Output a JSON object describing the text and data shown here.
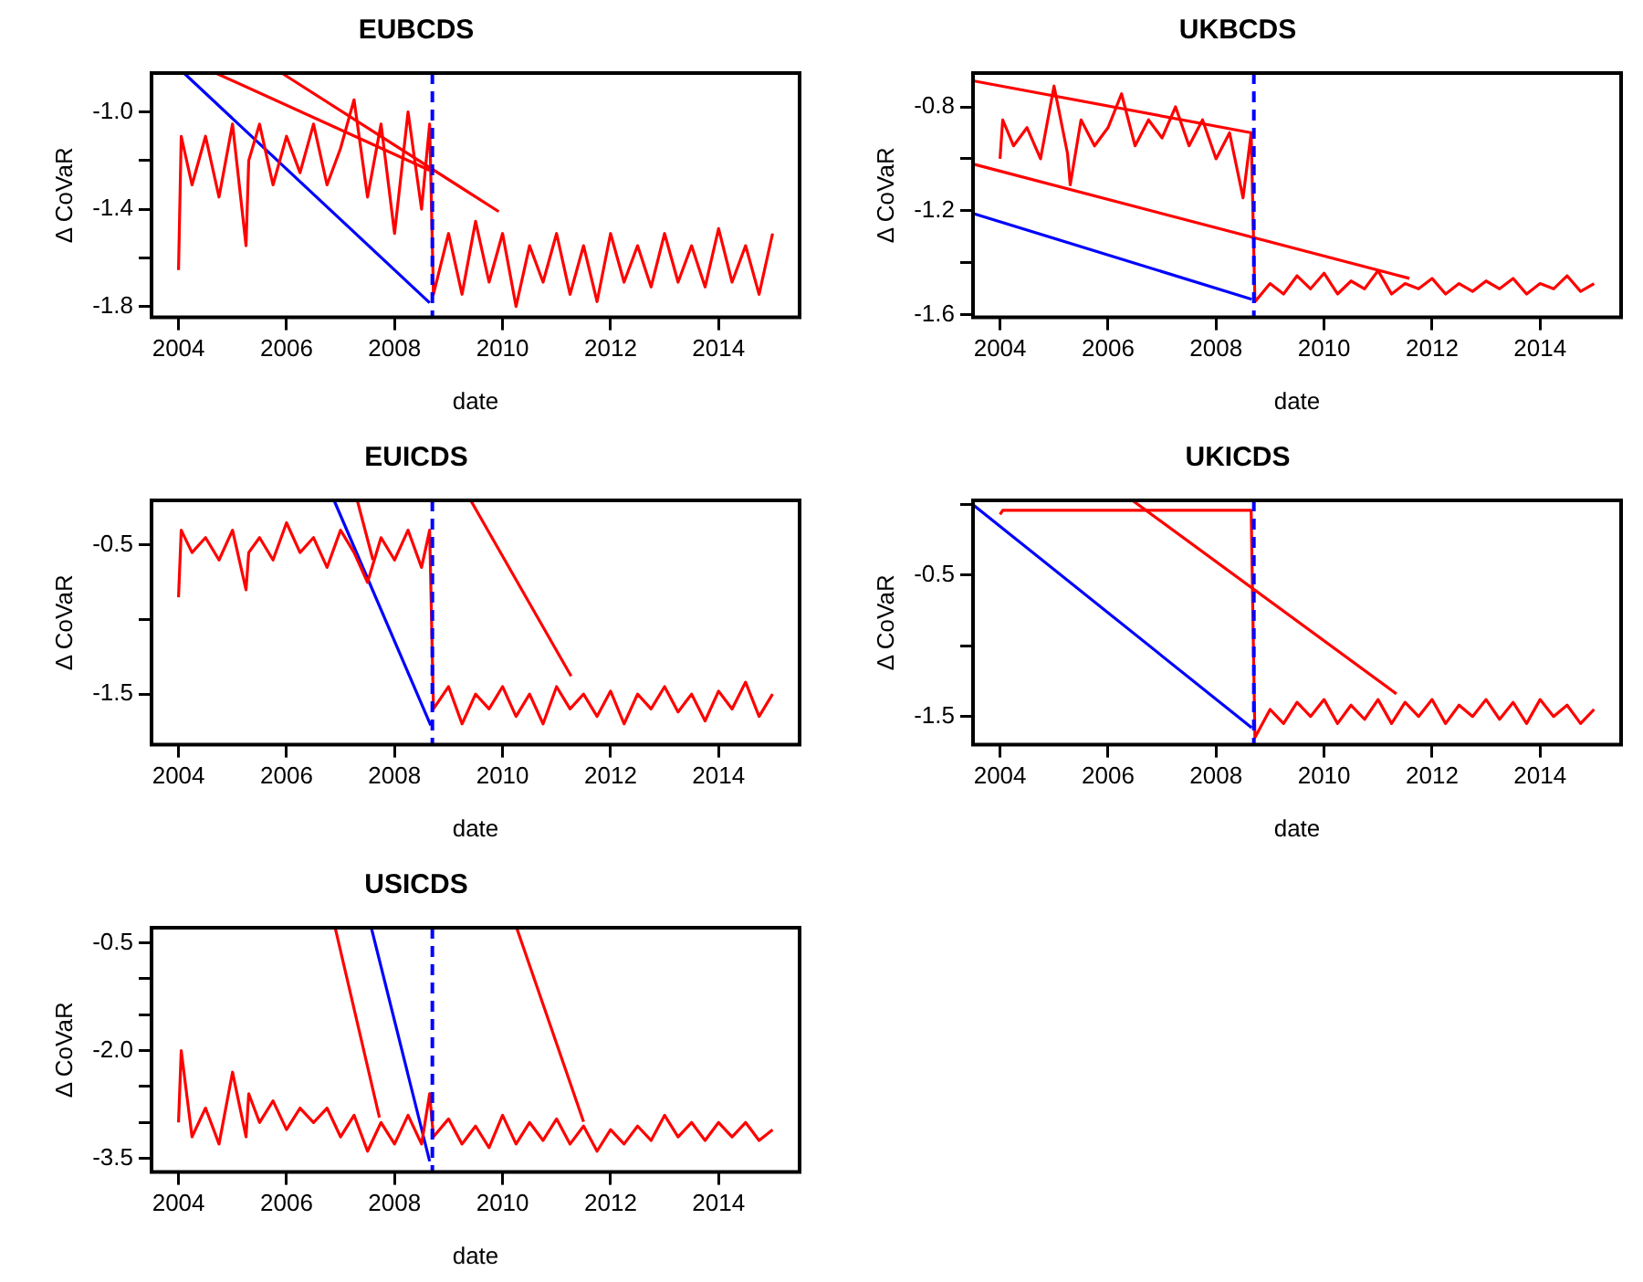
{
  "chart_data": [
    {
      "type": "line",
      "title": "EUBCDS",
      "xlabel": "date",
      "ylabel": "Δ CoVaR",
      "xlim": [
        2003.5,
        2015.5
      ],
      "xticks": [
        2004,
        2006,
        2008,
        2010,
        2012,
        2014
      ],
      "ylim": [
        -1.845,
        -0.84
      ],
      "yticks": [
        {
          "value": -1.8,
          "label": "-1.8"
        },
        {
          "value": -1.6,
          "label": null
        },
        {
          "value": -1.4,
          "label": "-1.4"
        },
        {
          "value": -1.2,
          "label": null
        },
        {
          "value": -1.0,
          "label": "-1.0"
        }
      ],
      "grid": false,
      "legend": false,
      "marker": "none",
      "line_style": "solid",
      "series": [
        {
          "color": "#ff0000",
          "x": [
            2004.0,
            2004.05,
            2004.25,
            2004.5,
            2004.75,
            2005.0,
            2005.25,
            2005.3,
            2005.5,
            2005.75,
            2006.0,
            2006.25,
            2006.5,
            2006.75,
            2007.0,
            2007.25,
            2007.5,
            2007.75,
            2008.0,
            2008.25,
            2008.5,
            2008.65,
            2008.72,
            2009.0,
            2009.25,
            2009.5,
            2009.75,
            2010.0,
            2010.25,
            2010.5,
            2010.75,
            2011.0,
            2011.25,
            2011.5,
            2011.75,
            2012.0,
            2012.25,
            2012.5,
            2012.75,
            2013.0,
            2013.25,
            2013.5,
            2013.75,
            2014.0,
            2014.25,
            2014.5,
            2014.75,
            2015.0
          ],
          "values": [
            -1.65,
            -1.1,
            -1.3,
            -1.1,
            -1.35,
            -1.05,
            -1.55,
            -1.2,
            -1.05,
            -1.3,
            -1.1,
            -1.25,
            -1.05,
            -1.3,
            -1.15,
            -0.95,
            -1.35,
            -1.05,
            -1.5,
            -1.0,
            -1.4,
            -1.05,
            -1.75,
            -1.5,
            -1.75,
            -1.45,
            -1.7,
            -1.5,
            -1.8,
            -1.55,
            -1.7,
            -1.5,
            -1.75,
            -1.55,
            -1.78,
            -1.5,
            -1.7,
            -1.55,
            -1.72,
            -1.5,
            -1.7,
            -1.55,
            -1.72,
            -1.48,
            -1.7,
            -1.55,
            -1.75,
            -1.5
          ]
        },
        {
          "color": "#ff0000",
          "x": [
            2004.69,
            2008.65
          ],
          "values": [
            -0.84,
            -1.24
          ]
        },
        {
          "color": "#ff0000",
          "x": [
            2005.91,
            2009.93
          ],
          "values": [
            -0.84,
            -1.41
          ]
        },
        {
          "color": "#0000ff",
          "x": [
            2004.1,
            2008.65
          ],
          "values": [
            -0.84,
            -1.785
          ]
        }
      ],
      "ref_lines": [
        {
          "axis": "x",
          "value": 2008.7,
          "color": "#0000ff",
          "line_style": "dashed"
        }
      ]
    },
    {
      "type": "line",
      "title": "UKBCDS",
      "xlabel": "date",
      "ylabel": "Δ CoVaR",
      "xlim": [
        2003.5,
        2015.5
      ],
      "xticks": [
        2004,
        2006,
        2008,
        2010,
        2012,
        2014
      ],
      "ylim": [
        -1.61,
        -0.67
      ],
      "yticks": [
        {
          "value": -1.6,
          "label": "-1.6"
        },
        {
          "value": -1.4,
          "label": null
        },
        {
          "value": -1.2,
          "label": "-1.2"
        },
        {
          "value": -1.0,
          "label": null
        },
        {
          "value": -0.8,
          "label": "-0.8"
        }
      ],
      "grid": false,
      "legend": false,
      "marker": "none",
      "line_style": "solid",
      "series": [
        {
          "color": "#ff0000",
          "x": [
            2004.0,
            2004.05,
            2004.25,
            2004.5,
            2004.75,
            2005.0,
            2005.25,
            2005.3,
            2005.5,
            2005.75,
            2006.0,
            2006.25,
            2006.5,
            2006.75,
            2007.0,
            2007.25,
            2007.5,
            2007.75,
            2008.0,
            2008.25,
            2008.5,
            2008.65,
            2008.72,
            2009.0,
            2009.25,
            2009.5,
            2009.75,
            2010.0,
            2010.25,
            2010.5,
            2010.75,
            2011.0,
            2011.25,
            2011.5,
            2011.75,
            2012.0,
            2012.25,
            2012.5,
            2012.75,
            2013.0,
            2013.25,
            2013.5,
            2013.75,
            2014.0,
            2014.25,
            2014.5,
            2014.75,
            2015.0
          ],
          "values": [
            -1.0,
            -0.85,
            -0.95,
            -0.88,
            -1.0,
            -0.72,
            -0.98,
            -1.1,
            -0.85,
            -0.95,
            -0.88,
            -0.75,
            -0.95,
            -0.85,
            -0.92,
            -0.8,
            -0.95,
            -0.85,
            -1.0,
            -0.9,
            -1.15,
            -0.9,
            -1.55,
            -1.48,
            -1.52,
            -1.45,
            -1.5,
            -1.44,
            -1.52,
            -1.47,
            -1.5,
            -1.43,
            -1.52,
            -1.48,
            -1.5,
            -1.46,
            -1.52,
            -1.48,
            -1.51,
            -1.47,
            -1.5,
            -1.46,
            -1.52,
            -1.48,
            -1.5,
            -1.45,
            -1.51,
            -1.48
          ]
        },
        {
          "color": "#ff0000",
          "x": [
            2003.5,
            2008.66
          ],
          "values": [
            -0.7,
            -0.9
          ]
        },
        {
          "color": "#ff0000",
          "x": [
            2003.5,
            2011.58
          ],
          "values": [
            -1.02,
            -1.46
          ]
        },
        {
          "color": "#0000ff",
          "x": [
            2003.5,
            2008.66
          ],
          "values": [
            -1.21,
            -1.54
          ]
        }
      ],
      "ref_lines": [
        {
          "axis": "x",
          "value": 2008.7,
          "color": "#0000ff",
          "line_style": "dashed"
        }
      ]
    },
    {
      "type": "line",
      "title": "EUICDS",
      "xlabel": "date",
      "ylabel": "Δ CoVaR",
      "xlim": [
        2003.5,
        2015.5
      ],
      "xticks": [
        2004,
        2006,
        2008,
        2010,
        2012,
        2014
      ],
      "ylim": [
        -1.84,
        -0.2
      ],
      "yticks": [
        {
          "value": -1.5,
          "label": "-1.5"
        },
        {
          "value": -1.0,
          "label": null
        },
        {
          "value": -0.5,
          "label": "-0.5"
        }
      ],
      "grid": false,
      "legend": false,
      "marker": "none",
      "line_style": "solid",
      "series": [
        {
          "color": "#ff0000",
          "x": [
            2004.0,
            2004.05,
            2004.25,
            2004.5,
            2004.75,
            2005.0,
            2005.25,
            2005.3,
            2005.5,
            2005.75,
            2006.0,
            2006.25,
            2006.5,
            2006.75,
            2007.0,
            2007.25,
            2007.5,
            2007.75,
            2008.0,
            2008.25,
            2008.5,
            2008.65,
            2008.72,
            2009.0,
            2009.25,
            2009.5,
            2009.75,
            2010.0,
            2010.25,
            2010.5,
            2010.75,
            2011.0,
            2011.25,
            2011.5,
            2011.75,
            2012.0,
            2012.25,
            2012.5,
            2012.75,
            2013.0,
            2013.25,
            2013.5,
            2013.75,
            2014.0,
            2014.25,
            2014.5,
            2014.75,
            2015.0
          ],
          "values": [
            -0.85,
            -0.4,
            -0.55,
            -0.45,
            -0.6,
            -0.4,
            -0.8,
            -0.55,
            -0.45,
            -0.6,
            -0.35,
            -0.55,
            -0.45,
            -0.65,
            -0.4,
            -0.55,
            -0.75,
            -0.45,
            -0.6,
            -0.4,
            -0.65,
            -0.4,
            -1.6,
            -1.45,
            -1.7,
            -1.5,
            -1.6,
            -1.45,
            -1.65,
            -1.5,
            -1.7,
            -1.45,
            -1.6,
            -1.5,
            -1.65,
            -1.48,
            -1.7,
            -1.5,
            -1.6,
            -1.45,
            -1.62,
            -1.5,
            -1.68,
            -1.48,
            -1.6,
            -1.42,
            -1.65,
            -1.5
          ]
        },
        {
          "color": "#ff0000",
          "x": [
            2007.31,
            2007.6
          ],
          "values": [
            -0.2,
            -0.6
          ]
        },
        {
          "color": "#ff0000",
          "x": [
            2009.41,
            2011.27
          ],
          "values": [
            -0.2,
            -1.38
          ]
        },
        {
          "color": "#0000ff",
          "x": [
            2006.88,
            2008.67
          ],
          "values": [
            -0.2,
            -1.71
          ]
        }
      ],
      "ref_lines": [
        {
          "axis": "x",
          "value": 2008.7,
          "color": "#0000ff",
          "line_style": "dashed"
        }
      ]
    },
    {
      "type": "line",
      "title": "UKICDS",
      "xlabel": "date",
      "ylabel": "Δ CoVaR",
      "xlim": [
        2003.5,
        2015.5
      ],
      "xticks": [
        2004,
        2006,
        2008,
        2010,
        2012,
        2014
      ],
      "ylim": [
        -1.7,
        0.03
      ],
      "yticks": [
        {
          "value": -1.5,
          "label": "-1.5"
        },
        {
          "value": -1.0,
          "label": null
        },
        {
          "value": -0.5,
          "label": "-0.5"
        },
        {
          "value": 0.0,
          "label": null
        }
      ],
      "grid": false,
      "legend": false,
      "marker": "none",
      "line_style": "solid",
      "series": [
        {
          "color": "#ff0000",
          "x": [
            2004.0,
            2004.05,
            2004.25,
            2004.5,
            2004.75,
            2005.0,
            2005.25,
            2005.3,
            2005.5,
            2005.75,
            2006.0,
            2006.25,
            2006.5,
            2006.75,
            2007.0,
            2007.25,
            2007.5,
            2007.75,
            2008.0,
            2008.25,
            2008.5,
            2008.65,
            2008.72,
            2009.0,
            2009.25,
            2009.5,
            2009.75,
            2010.0,
            2010.25,
            2010.5,
            2010.75,
            2011.0,
            2011.25,
            2011.5,
            2011.75,
            2012.0,
            2012.25,
            2012.5,
            2012.75,
            2013.0,
            2013.25,
            2013.5,
            2013.75,
            2014.0,
            2014.25,
            2014.5,
            2014.75,
            2015.0
          ],
          "values": [
            -0.07,
            -0.04,
            -0.04,
            -0.04,
            -0.04,
            -0.04,
            -0.04,
            -0.04,
            -0.04,
            -0.04,
            -0.04,
            -0.04,
            -0.04,
            -0.04,
            -0.04,
            -0.04,
            -0.04,
            -0.04,
            -0.04,
            -0.04,
            -0.04,
            -0.04,
            -1.65,
            -1.45,
            -1.55,
            -1.4,
            -1.5,
            -1.38,
            -1.55,
            -1.42,
            -1.52,
            -1.38,
            -1.55,
            -1.4,
            -1.5,
            -1.38,
            -1.55,
            -1.42,
            -1.5,
            -1.38,
            -1.52,
            -1.4,
            -1.55,
            -1.38,
            -1.5,
            -1.42,
            -1.55,
            -1.45
          ]
        },
        {
          "color": "#ff0000",
          "x": [
            2006.45,
            2011.34
          ],
          "values": [
            0.03,
            -1.34
          ]
        },
        {
          "color": "#0000ff",
          "x": [
            2003.5,
            2008.66
          ],
          "values": [
            0.0,
            -1.58
          ]
        }
      ],
      "ref_lines": [
        {
          "axis": "x",
          "value": 2008.7,
          "color": "#0000ff",
          "line_style": "dashed"
        }
      ]
    },
    {
      "type": "line",
      "title": "USICDS",
      "xlabel": "date",
      "ylabel": "Δ CoVaR",
      "xlim": [
        2003.5,
        2015.5
      ],
      "xticks": [
        2004,
        2006,
        2008,
        2010,
        2012,
        2014
      ],
      "ylim": [
        -3.69,
        -0.29
      ],
      "yticks": [
        {
          "value": -3.5,
          "label": "-3.5"
        },
        {
          "value": -3.0,
          "label": null
        },
        {
          "value": -2.5,
          "label": null
        },
        {
          "value": -2.0,
          "label": "-2.0"
        },
        {
          "value": -1.5,
          "label": null
        },
        {
          "value": -1.0,
          "label": null
        },
        {
          "value": -0.5,
          "label": "-0.5"
        }
      ],
      "grid": false,
      "legend": false,
      "marker": "none",
      "line_style": "solid",
      "series": [
        {
          "color": "#ff0000",
          "x": [
            2004.0,
            2004.05,
            2004.25,
            2004.5,
            2004.75,
            2005.0,
            2005.25,
            2005.3,
            2005.5,
            2005.75,
            2006.0,
            2006.25,
            2006.5,
            2006.75,
            2007.0,
            2007.25,
            2007.5,
            2007.75,
            2008.0,
            2008.25,
            2008.5,
            2008.65,
            2008.72,
            2009.0,
            2009.25,
            2009.5,
            2009.75,
            2010.0,
            2010.25,
            2010.5,
            2010.75,
            2011.0,
            2011.25,
            2011.5,
            2011.75,
            2012.0,
            2012.25,
            2012.5,
            2012.75,
            2013.0,
            2013.25,
            2013.5,
            2013.75,
            2014.0,
            2014.25,
            2014.5,
            2014.75,
            2015.0
          ],
          "values": [
            -3.0,
            -2.0,
            -3.2,
            -2.8,
            -3.3,
            -2.3,
            -3.2,
            -2.6,
            -3.0,
            -2.7,
            -3.1,
            -2.8,
            -3.0,
            -2.8,
            -3.2,
            -2.9,
            -3.4,
            -3.0,
            -3.3,
            -2.9,
            -3.3,
            -2.6,
            -3.2,
            -2.95,
            -3.3,
            -3.05,
            -3.35,
            -2.9,
            -3.3,
            -3.0,
            -3.25,
            -2.95,
            -3.3,
            -3.05,
            -3.4,
            -3.1,
            -3.3,
            -3.05,
            -3.25,
            -2.9,
            -3.2,
            -3.0,
            -3.25,
            -3.0,
            -3.2,
            -3.0,
            -3.25,
            -3.1
          ]
        },
        {
          "color": "#ff0000",
          "x": [
            2006.9,
            2007.72
          ],
          "values": [
            -0.29,
            -2.93
          ]
        },
        {
          "color": "#ff0000",
          "x": [
            2010.26,
            2011.5
          ],
          "values": [
            -0.29,
            -2.99
          ]
        },
        {
          "color": "#0000ff",
          "x": [
            2007.57,
            2008.65
          ],
          "values": [
            -0.29,
            -3.54
          ]
        }
      ],
      "ref_lines": [
        {
          "axis": "x",
          "value": 2008.7,
          "color": "#0000ff",
          "line_style": "dashed"
        }
      ]
    }
  ]
}
